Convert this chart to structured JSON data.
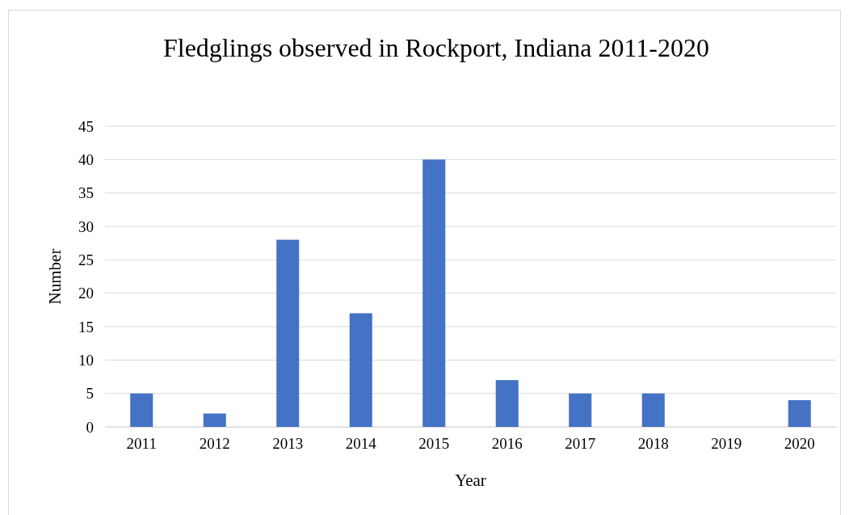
{
  "chart_data": {
    "type": "bar",
    "title": "Fledglings observed in Rockport, Indiana 2011-2020",
    "xlabel": "Year",
    "ylabel": "Number",
    "categories": [
      "2011",
      "2012",
      "2013",
      "2014",
      "2015",
      "2016",
      "2017",
      "2018",
      "2019",
      "2020"
    ],
    "values": [
      5,
      2,
      28,
      17,
      40,
      7,
      5,
      5,
      0,
      4
    ],
    "color": "#4472c4",
    "ylim": [
      0,
      45
    ],
    "yticks": [
      0,
      5,
      10,
      15,
      20,
      25,
      30,
      35,
      40,
      45
    ],
    "grid": "y"
  }
}
